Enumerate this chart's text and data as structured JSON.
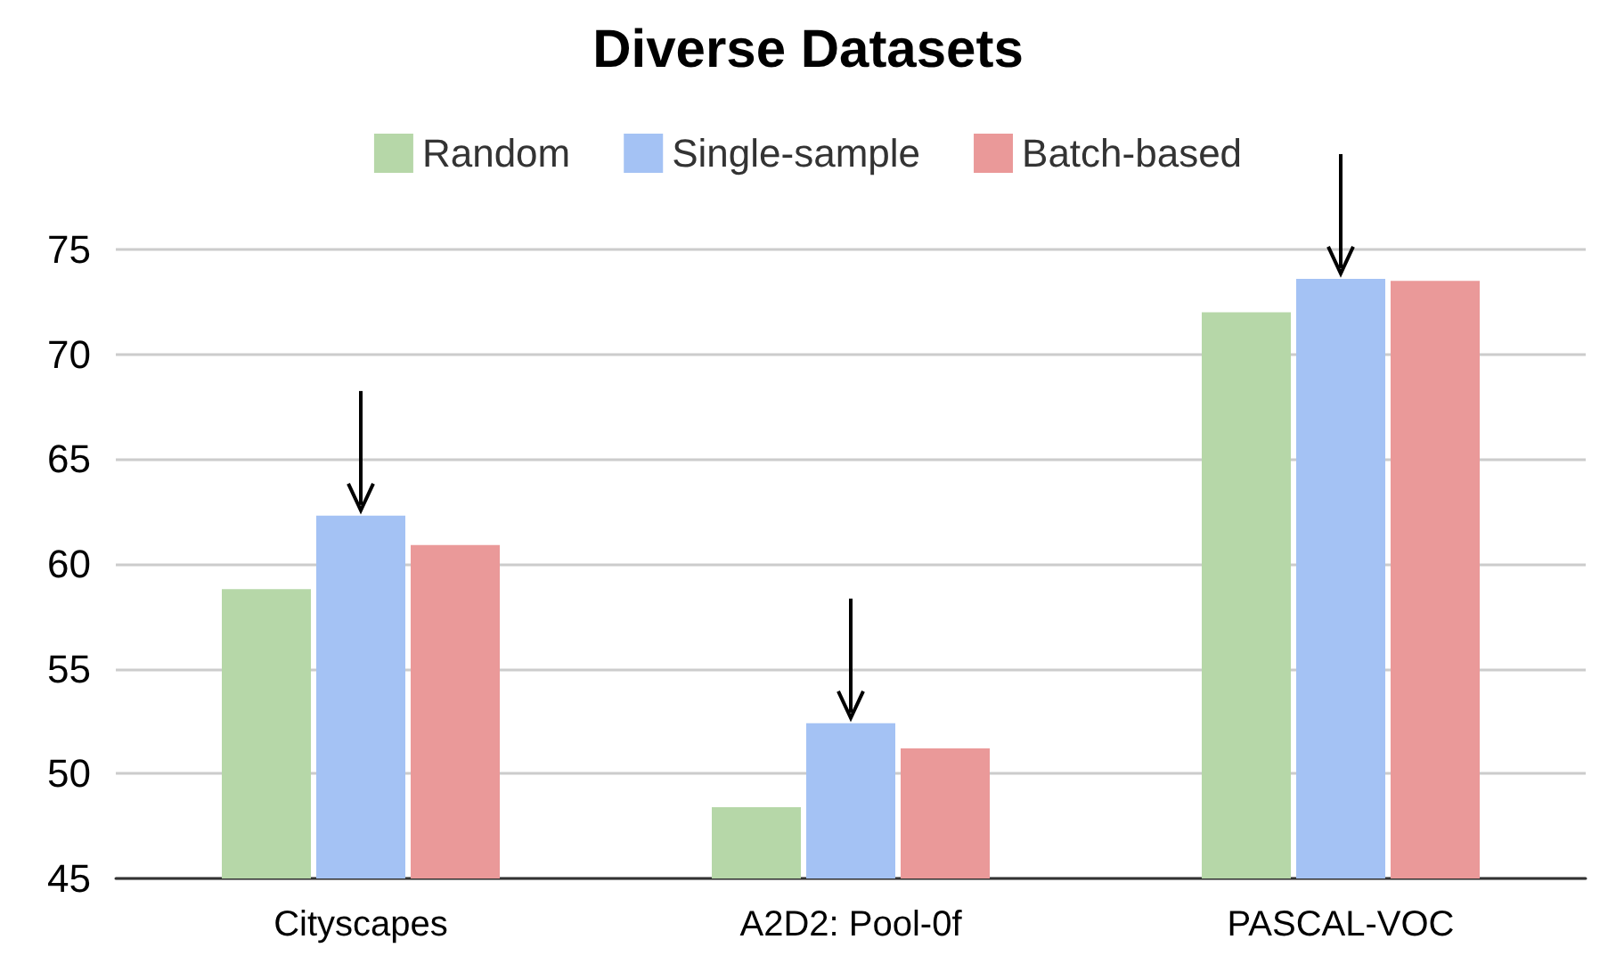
{
  "chart_data": {
    "type": "bar",
    "title": "Diverse Datasets",
    "categories": [
      "Cityscapes",
      "A2D2: Pool-0f",
      "PASCAL-VOC"
    ],
    "series": [
      {
        "name": "Random",
        "color": "#b6d7a8",
        "values": [
          58.8,
          48.4,
          72.0
        ]
      },
      {
        "name": "Single-sample",
        "color": "#a4c2f4",
        "values": [
          62.3,
          52.4,
          73.6
        ]
      },
      {
        "name": "Batch-based",
        "color": "#ea9999",
        "values": [
          60.9,
          51.2,
          73.5
        ]
      }
    ],
    "ylim": [
      45,
      75
    ],
    "yticks": [
      45,
      50,
      55,
      60,
      65,
      70,
      75
    ],
    "grid": "y",
    "legend": "top"
  }
}
